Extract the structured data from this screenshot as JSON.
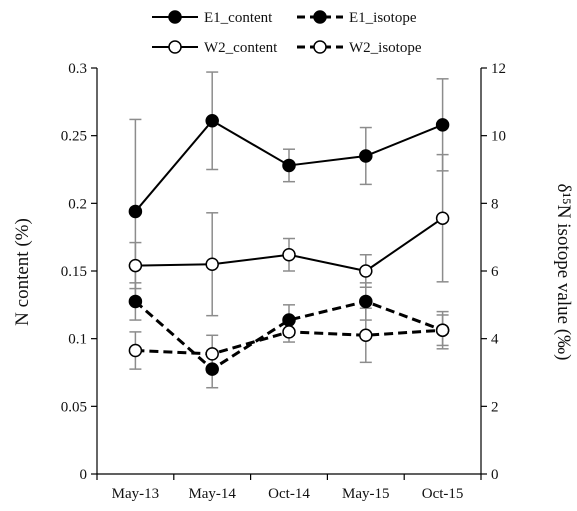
{
  "chart_data": {
    "type": "line",
    "categories": [
      "May-13",
      "May-14",
      "Oct-14",
      "May-15",
      "Oct-15"
    ],
    "title": "",
    "xlabel": "",
    "ylabel": "N content (%)",
    "ylabel_right": "δ¹⁵N isotope value (‰)",
    "ylim": [
      0,
      0.3
    ],
    "ylim_right": [
      0,
      12
    ],
    "yticks": [
      "0",
      "0.05",
      "0.1",
      "0.15",
      "0.2",
      "0.25",
      "0.3"
    ],
    "yticks_right": [
      "0",
      "2",
      "4",
      "6",
      "8",
      "10",
      "12"
    ],
    "grid": false,
    "legend_position": "top",
    "series": [
      {
        "name": "E1_content",
        "axis": "left",
        "line_style": "solid",
        "marker_fill": "#000000",
        "values": [
          0.194,
          0.261,
          0.228,
          0.235,
          0.258
        ],
        "errors": [
          0.068,
          0.036,
          0.012,
          0.021,
          0.034
        ]
      },
      {
        "name": "E1_isotope",
        "axis": "right",
        "line_style": "dashed",
        "marker_fill": "#000000",
        "values": [
          5.1,
          3.1,
          4.55,
          5.1,
          4.25
        ],
        "errors": [
          0.55,
          0.55,
          0.45,
          0.55,
          0.45
        ]
      },
      {
        "name": "W2_content",
        "axis": "left",
        "line_style": "solid",
        "marker_fill": "#ffffff",
        "values": [
          0.154,
          0.155,
          0.162,
          0.15,
          0.189
        ],
        "errors": [
          0.017,
          0.038,
          0.012,
          0.012,
          0.047
        ]
      },
      {
        "name": "W2_isotope",
        "axis": "right",
        "line_style": "dashed",
        "marker_fill": "#ffffff",
        "values": [
          3.65,
          3.55,
          4.2,
          4.1,
          4.25
        ],
        "errors": [
          0.55,
          0.55,
          0.3,
          0.8,
          0.55
        ]
      }
    ],
    "colors": {
      "line": "#000000",
      "error_bar": "#8c8c8c",
      "axis": "#000000"
    }
  }
}
